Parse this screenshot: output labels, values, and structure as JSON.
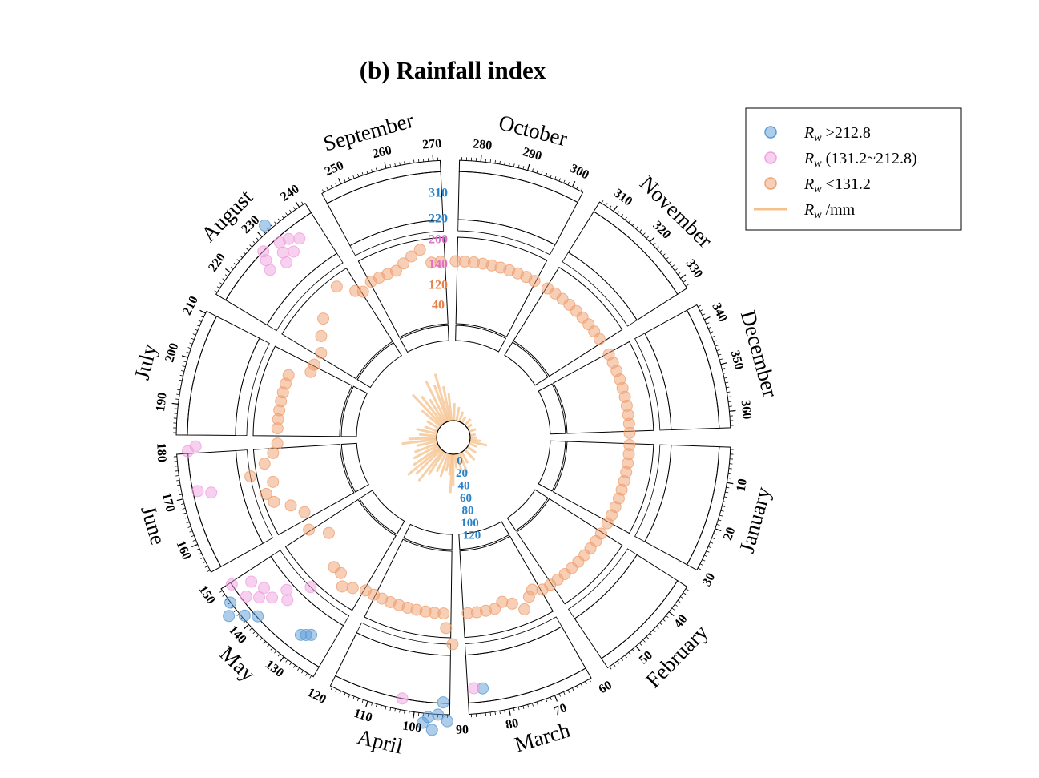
{
  "chart_data": {
    "type": "scatter",
    "subtype": "polar-calendar",
    "title": "(b) Rainfall index",
    "angular_axis": {
      "unit": "day of year",
      "months": [
        {
          "name": "January",
          "start": 1,
          "end": 31,
          "ticks": [
            "10",
            "20",
            "30"
          ]
        },
        {
          "name": "February",
          "start": 32,
          "end": 59,
          "ticks": [
            "40",
            "50"
          ]
        },
        {
          "name": "March",
          "start": 60,
          "end": 90,
          "ticks": [
            "60",
            "70",
            "80",
            "90"
          ]
        },
        {
          "name": "April",
          "start": 91,
          "end": 120,
          "ticks": [
            "100",
            "110",
            "120"
          ]
        },
        {
          "name": "May",
          "start": 121,
          "end": 151,
          "ticks": [
            "130",
            "140",
            "150"
          ]
        },
        {
          "name": "June",
          "start": 152,
          "end": 181,
          "ticks": [
            "160",
            "170",
            "180"
          ]
        },
        {
          "name": "July",
          "start": 182,
          "end": 212,
          "ticks": [
            "190",
            "200",
            "210"
          ]
        },
        {
          "name": "August",
          "start": 213,
          "end": 243,
          "ticks": [
            "220",
            "230",
            "240"
          ]
        },
        {
          "name": "September",
          "start": 244,
          "end": 273,
          "ticks": [
            "250",
            "260",
            "270"
          ]
        },
        {
          "name": "October",
          "start": 274,
          "end": 304,
          "ticks": [
            "280",
            "290",
            "300"
          ]
        },
        {
          "name": "November",
          "start": 305,
          "end": 334,
          "ticks": [
            "310",
            "320",
            "330"
          ]
        },
        {
          "name": "December",
          "start": 335,
          "end": 365,
          "ticks": [
            "340",
            "350",
            "360"
          ]
        }
      ]
    },
    "radial_axis": {
      "bands": [
        {
          "label_lo": "40",
          "label_hi": "120",
          "color": "#e8804a"
        },
        {
          "label_lo": "140",
          "label_hi": "200",
          "color": "#e070c8"
        },
        {
          "label_lo": "220",
          "label_hi": "310",
          "color": "#2a82c8"
        }
      ],
      "bar_ticks": [
        "0",
        "20",
        "40",
        "60",
        "80",
        "100",
        "120"
      ],
      "bar_tick_color": "#2a82c8"
    },
    "series": [
      {
        "name": "R_w >212.8",
        "symbol": "circle",
        "color": "#5b9bd5",
        "points": [
          {
            "day": 232,
            "value": 300
          },
          {
            "day": 85,
            "value": 250
          },
          {
            "day": 93,
            "value": 300
          },
          {
            "day": 94,
            "value": 270
          },
          {
            "day": 95,
            "value": 290
          },
          {
            "day": 96,
            "value": 315
          },
          {
            "day": 97,
            "value": 295
          },
          {
            "day": 98,
            "value": 305
          },
          {
            "day": 128,
            "value": 235
          },
          {
            "day": 129,
            "value": 240
          },
          {
            "day": 130,
            "value": 245
          },
          {
            "day": 140,
            "value": 270
          },
          {
            "day": 142,
            "value": 285
          },
          {
            "day": 144,
            "value": 305
          },
          {
            "day": 146,
            "value": 290
          }
        ]
      },
      {
        "name": "R_w (131.2~212.8)",
        "symbol": "circle",
        "color": "#f0a0e0",
        "points": [
          {
            "day": 87,
            "value": 185
          },
          {
            "day": 103,
            "value": 215
          },
          {
            "day": 136,
            "value": 135
          },
          {
            "day": 138,
            "value": 155
          },
          {
            "day": 140,
            "value": 145
          },
          {
            "day": 141,
            "value": 170
          },
          {
            "day": 143,
            "value": 185
          },
          {
            "day": 144,
            "value": 170
          },
          {
            "day": 145,
            "value": 200
          },
          {
            "day": 147,
            "value": 180
          },
          {
            "day": 149,
            "value": 205
          },
          {
            "day": 170,
            "value": 180
          },
          {
            "day": 171,
            "value": 200
          },
          {
            "day": 180,
            "value": 210
          },
          {
            "day": 181,
            "value": 195
          },
          {
            "day": 226,
            "value": 180
          },
          {
            "day": 227,
            "value": 195
          },
          {
            "day": 228,
            "value": 210
          },
          {
            "day": 230,
            "value": 170
          },
          {
            "day": 231,
            "value": 185
          },
          {
            "day": 232,
            "value": 200
          },
          {
            "day": 233,
            "value": 175
          },
          {
            "day": 234,
            "value": 195
          },
          {
            "day": 236,
            "value": 185
          }
        ]
      },
      {
        "name": "R_w <131.2",
        "symbol": "circle",
        "color": "#f0a070",
        "points": [
          {
            "day": 3,
            "value": 100
          },
          {
            "day": 6,
            "value": 100
          },
          {
            "day": 9,
            "value": 100
          },
          {
            "day": 12,
            "value": 100
          },
          {
            "day": 15,
            "value": 100
          },
          {
            "day": 18,
            "value": 100
          },
          {
            "day": 21,
            "value": 100
          },
          {
            "day": 24,
            "value": 100
          },
          {
            "day": 27,
            "value": 100
          },
          {
            "day": 30,
            "value": 100
          },
          {
            "day": 34,
            "value": 100
          },
          {
            "day": 37,
            "value": 100
          },
          {
            "day": 40,
            "value": 100
          },
          {
            "day": 43,
            "value": 100
          },
          {
            "day": 46,
            "value": 100
          },
          {
            "day": 49,
            "value": 100
          },
          {
            "day": 52,
            "value": 100
          },
          {
            "day": 55,
            "value": 100
          },
          {
            "day": 58,
            "value": 100
          },
          {
            "day": 61,
            "value": 100
          },
          {
            "day": 64,
            "value": 95
          },
          {
            "day": 66,
            "value": 100
          },
          {
            "day": 69,
            "value": 110
          },
          {
            "day": 72,
            "value": 100
          },
          {
            "day": 75,
            "value": 95
          },
          {
            "day": 78,
            "value": 100
          },
          {
            "day": 81,
            "value": 100
          },
          {
            "day": 84,
            "value": 100
          },
          {
            "day": 87,
            "value": 100
          },
          {
            "day": 92,
            "value": 125
          },
          {
            "day": 94,
            "value": 115
          },
          {
            "day": 95,
            "value": 100
          },
          {
            "day": 98,
            "value": 100
          },
          {
            "day": 101,
            "value": 100
          },
          {
            "day": 104,
            "value": 100
          },
          {
            "day": 107,
            "value": 100
          },
          {
            "day": 110,
            "value": 100
          },
          {
            "day": 113,
            "value": 100
          },
          {
            "day": 116,
            "value": 100
          },
          {
            "day": 119,
            "value": 100
          },
          {
            "day": 122,
            "value": 100
          },
          {
            "day": 126,
            "value": 105
          },
          {
            "day": 129,
            "value": 110
          },
          {
            "day": 132,
            "value": 100
          },
          {
            "day": 135,
            "value": 100
          },
          {
            "day": 145,
            "value": 80
          },
          {
            "day": 150,
            "value": 95
          },
          {
            "day": 156,
            "value": 90
          },
          {
            "day": 160,
            "value": 100
          },
          {
            "day": 163,
            "value": 115
          },
          {
            "day": 166,
            "value": 120
          },
          {
            "day": 169,
            "value": 110
          },
          {
            "day": 172,
            "value": 125
          },
          {
            "day": 175,
            "value": 115
          },
          {
            "day": 178,
            "value": 105
          },
          {
            "day": 181,
            "value": 100
          },
          {
            "day": 186,
            "value": 100
          },
          {
            "day": 189,
            "value": 100
          },
          {
            "day": 192,
            "value": 100
          },
          {
            "day": 195,
            "value": 100
          },
          {
            "day": 198,
            "value": 100
          },
          {
            "day": 201,
            "value": 100
          },
          {
            "day": 204,
            "value": 100
          },
          {
            "day": 208,
            "value": 80
          },
          {
            "day": 211,
            "value": 80
          },
          {
            "day": 216,
            "value": 80
          },
          {
            "day": 221,
            "value": 90
          },
          {
            "day": 226,
            "value": 100
          },
          {
            "day": 236,
            "value": 115
          },
          {
            "day": 240,
            "value": 100
          },
          {
            "day": 242,
            "value": 95
          },
          {
            "day": 246,
            "value": 100
          },
          {
            "day": 249,
            "value": 100
          },
          {
            "day": 252,
            "value": 100
          },
          {
            "day": 255,
            "value": 100
          },
          {
            "day": 258,
            "value": 105
          },
          {
            "day": 261,
            "value": 110
          },
          {
            "day": 264,
            "value": 115
          },
          {
            "day": 267,
            "value": 100
          },
          {
            "day": 270,
            "value": 100
          },
          {
            "day": 275,
            "value": 100
          },
          {
            "day": 278,
            "value": 100
          },
          {
            "day": 281,
            "value": 100
          },
          {
            "day": 284,
            "value": 100
          },
          {
            "day": 287,
            "value": 100
          },
          {
            "day": 290,
            "value": 100
          },
          {
            "day": 293,
            "value": 100
          },
          {
            "day": 296,
            "value": 100
          },
          {
            "day": 299,
            "value": 100
          },
          {
            "day": 302,
            "value": 100
          },
          {
            "day": 307,
            "value": 100
          },
          {
            "day": 310,
            "value": 100
          },
          {
            "day": 313,
            "value": 100
          },
          {
            "day": 316,
            "value": 100
          },
          {
            "day": 319,
            "value": 100
          },
          {
            "day": 322,
            "value": 100
          },
          {
            "day": 325,
            "value": 100
          },
          {
            "day": 328,
            "value": 100
          },
          {
            "day": 331,
            "value": 100
          },
          {
            "day": 337,
            "value": 100
          },
          {
            "day": 340,
            "value": 100
          },
          {
            "day": 343,
            "value": 100
          },
          {
            "day": 346,
            "value": 100
          },
          {
            "day": 349,
            "value": 100
          },
          {
            "day": 352,
            "value": 100
          },
          {
            "day": 355,
            "value": 100
          },
          {
            "day": 358,
            "value": 100
          },
          {
            "day": 361,
            "value": 100
          },
          {
            "day": 364,
            "value": 100
          }
        ]
      },
      {
        "name": "R_w /mm",
        "type": "bar",
        "color": "#f5c08a",
        "points": [
          {
            "day": 1,
            "value": 10
          },
          {
            "day": 8,
            "value": 15
          },
          {
            "day": 14,
            "value": 25
          },
          {
            "day": 22,
            "value": 12
          },
          {
            "day": 35,
            "value": 15
          },
          {
            "day": 48,
            "value": 20
          },
          {
            "day": 62,
            "value": 18
          },
          {
            "day": 70,
            "value": 30
          },
          {
            "day": 78,
            "value": 25
          },
          {
            "day": 86,
            "value": 20
          },
          {
            "day": 92,
            "value": 45
          },
          {
            "day": 95,
            "value": 55
          },
          {
            "day": 98,
            "value": 30
          },
          {
            "day": 104,
            "value": 25
          },
          {
            "day": 110,
            "value": 35
          },
          {
            "day": 118,
            "value": 30
          },
          {
            "day": 126,
            "value": 40
          },
          {
            "day": 131,
            "value": 55
          },
          {
            "day": 138,
            "value": 50
          },
          {
            "day": 143,
            "value": 60
          },
          {
            "day": 148,
            "value": 45
          },
          {
            "day": 155,
            "value": 40
          },
          {
            "day": 162,
            "value": 35
          },
          {
            "day": 170,
            "value": 30
          },
          {
            "day": 176,
            "value": 50
          },
          {
            "day": 181,
            "value": 40
          },
          {
            "day": 188,
            "value": 25
          },
          {
            "day": 196,
            "value": 30
          },
          {
            "day": 204,
            "value": 20
          },
          {
            "day": 215,
            "value": 20
          },
          {
            "day": 224,
            "value": 35
          },
          {
            "day": 230,
            "value": 60
          },
          {
            "day": 236,
            "value": 50
          },
          {
            "day": 242,
            "value": 40
          },
          {
            "day": 248,
            "value": 65
          },
          {
            "day": 254,
            "value": 55
          },
          {
            "day": 258,
            "value": 70
          },
          {
            "day": 263,
            "value": 50
          },
          {
            "day": 268,
            "value": 40
          },
          {
            "day": 276,
            "value": 25
          },
          {
            "day": 285,
            "value": 20
          },
          {
            "day": 295,
            "value": 15
          },
          {
            "day": 305,
            "value": 10
          },
          {
            "day": 318,
            "value": 12
          },
          {
            "day": 330,
            "value": 8
          },
          {
            "day": 345,
            "value": 10
          },
          {
            "day": 358,
            "value": 8
          }
        ]
      }
    ],
    "legend": {
      "position": "top-right",
      "entries": [
        {
          "prefix": "R",
          "sub": "w",
          "suffix": " >212.8",
          "color": "#5b9bd5",
          "kind": "marker"
        },
        {
          "prefix": "R",
          "sub": "w",
          "suffix": " (131.2~212.8)",
          "color": "#f0a0e0",
          "kind": "marker"
        },
        {
          "prefix": "R",
          "sub": "w",
          "suffix": " <131.2",
          "color": "#f0a070",
          "kind": "marker"
        },
        {
          "prefix": "R",
          "sub": "w",
          "suffix": " /mm",
          "color": "#f5c08a",
          "kind": "line"
        }
      ]
    }
  }
}
